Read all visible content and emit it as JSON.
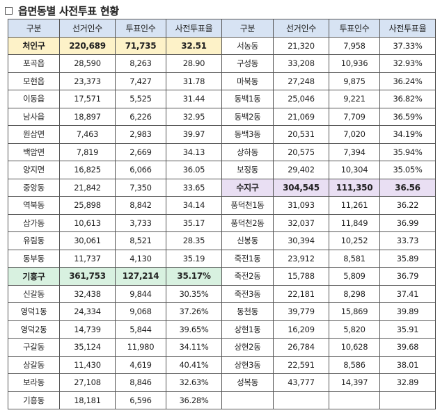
{
  "title": "읍면동별 사전투표 현황",
  "colors": {
    "header": "#d7e3f3",
    "cheoin": "#fdf2c8",
    "giheung": "#d8f1e0",
    "suji": "#e9dff3"
  },
  "headers": [
    "구분",
    "선거인수",
    "투표인수",
    "사전투표율",
    "구분",
    "선거인수",
    "투표인수",
    "사전투표율"
  ],
  "left_rows": [
    {
      "name": "처인구",
      "voters": "220,689",
      "votes": "71,735",
      "rate": "32.51",
      "district": "cheoin"
    },
    {
      "name": "포곡읍",
      "voters": "28,590",
      "votes": "8,263",
      "rate": "28.90"
    },
    {
      "name": "모현읍",
      "voters": "23,373",
      "votes": "7,427",
      "rate": "31.78"
    },
    {
      "name": "이동읍",
      "voters": "17,571",
      "votes": "5,525",
      "rate": "31.44"
    },
    {
      "name": "남사읍",
      "voters": "18,897",
      "votes": "6,226",
      "rate": "32.95"
    },
    {
      "name": "원삼면",
      "voters": "7,463",
      "votes": "2,983",
      "rate": "39.97"
    },
    {
      "name": "백암면",
      "voters": "7,819",
      "votes": "2,669",
      "rate": "34.13"
    },
    {
      "name": "양지면",
      "voters": "16,825",
      "votes": "6,066",
      "rate": "36.05"
    },
    {
      "name": "중앙동",
      "voters": "21,842",
      "votes": "7,350",
      "rate": "33.65"
    },
    {
      "name": "역북동",
      "voters": "25,898",
      "votes": "8,842",
      "rate": "34.14"
    },
    {
      "name": "삼가동",
      "voters": "10,613",
      "votes": "3,733",
      "rate": "35.17"
    },
    {
      "name": "유림동",
      "voters": "30,061",
      "votes": "8,521",
      "rate": "28.35"
    },
    {
      "name": "동부동",
      "voters": "11,737",
      "votes": "4,130",
      "rate": "35.19"
    },
    {
      "name": "기흥구",
      "voters": "361,753",
      "votes": "127,214",
      "rate": "35.17%",
      "district": "giheung"
    },
    {
      "name": "신갈동",
      "voters": "32,438",
      "votes": "9,844",
      "rate": "30.35%"
    },
    {
      "name": "영덕1동",
      "voters": "24,334",
      "votes": "9,068",
      "rate": "37.26%"
    },
    {
      "name": "영덕2동",
      "voters": "14,739",
      "votes": "5,844",
      "rate": "39.65%"
    },
    {
      "name": "구갈동",
      "voters": "35,124",
      "votes": "11,980",
      "rate": "34.11%"
    },
    {
      "name": "상갈동",
      "voters": "11,430",
      "votes": "4,619",
      "rate": "40.41%"
    },
    {
      "name": "보라동",
      "voters": "27,108",
      "votes": "8,846",
      "rate": "32.63%"
    },
    {
      "name": "기흥동",
      "voters": "18,181",
      "votes": "6,596",
      "rate": "36.28%"
    }
  ],
  "right_rows": [
    {
      "name": "서농동",
      "voters": "21,320",
      "votes": "7,958",
      "rate": "37.33%"
    },
    {
      "name": "구성동",
      "voters": "33,208",
      "votes": "10,936",
      "rate": "32.93%"
    },
    {
      "name": "마북동",
      "voters": "27,248",
      "votes": "9,875",
      "rate": "36.24%"
    },
    {
      "name": "동백1동",
      "voters": "25,046",
      "votes": "9,221",
      "rate": "36.82%"
    },
    {
      "name": "동백2동",
      "voters": "21,069",
      "votes": "7,709",
      "rate": "36.59%"
    },
    {
      "name": "동백3동",
      "voters": "20,531",
      "votes": "7,020",
      "rate": "34.19%"
    },
    {
      "name": "상하동",
      "voters": "20,575",
      "votes": "7,394",
      "rate": "35.94%"
    },
    {
      "name": "보정동",
      "voters": "29,402",
      "votes": "10,304",
      "rate": "35.05%"
    },
    {
      "name": "수지구",
      "voters": "304,545",
      "votes": "111,350",
      "rate": "36.56",
      "district": "suji"
    },
    {
      "name": "풍덕천1동",
      "voters": "31,093",
      "votes": "11,261",
      "rate": "36.22"
    },
    {
      "name": "풍덕천2동",
      "voters": "32,037",
      "votes": "11,849",
      "rate": "36.99"
    },
    {
      "name": "신봉동",
      "voters": "30,394",
      "votes": "10,252",
      "rate": "33.73"
    },
    {
      "name": "죽전1동",
      "voters": "23,912",
      "votes": "8,581",
      "rate": "35.89"
    },
    {
      "name": "죽전2동",
      "voters": "15,788",
      "votes": "5,809",
      "rate": "36.79"
    },
    {
      "name": "죽전3동",
      "voters": "22,181",
      "votes": "8,298",
      "rate": "37.41"
    },
    {
      "name": "동천동",
      "voters": "39,779",
      "votes": "15,869",
      "rate": "39.89"
    },
    {
      "name": "상현1동",
      "voters": "16,209",
      "votes": "5,820",
      "rate": "35.91"
    },
    {
      "name": "상현2동",
      "voters": "26,784",
      "votes": "10,628",
      "rate": "39.68"
    },
    {
      "name": "상현3동",
      "voters": "22,591",
      "votes": "8,586",
      "rate": "38.01"
    },
    {
      "name": "성복동",
      "voters": "43,777",
      "votes": "14,397",
      "rate": "32.89"
    },
    {
      "name": "",
      "voters": "",
      "votes": "",
      "rate": ""
    }
  ]
}
